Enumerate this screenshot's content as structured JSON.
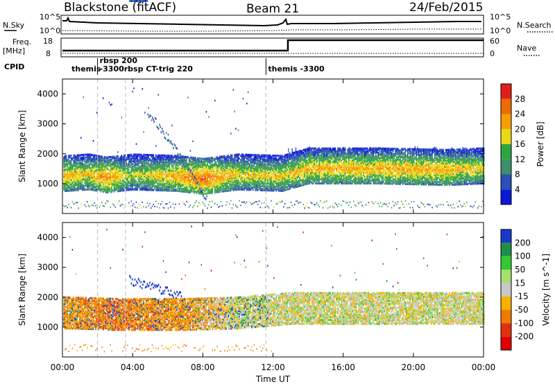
{
  "header": {
    "site": "Blackstone (fitACF)",
    "beam": "Beam 21",
    "date": "24/Feb/2015"
  },
  "strip": {
    "nsky_label": "N.Sky",
    "nsky_ticks": [
      "10^5",
      "10^0"
    ],
    "nsearch_label": "N.Search",
    "nsearch_ticks": [
      "10^5",
      "10^0"
    ],
    "freq_label_1": "Freq.",
    "freq_label_2": "[MHz]",
    "freq_ticks": [
      "18",
      "8"
    ],
    "nave_label": "Nave",
    "nave_ticks": [
      "60",
      "0"
    ],
    "cpid_label": "CPID",
    "cpid_entries": [
      {
        "text": "themis",
        "time": 0.4
      },
      {
        "text": "rbsp 200",
        "time": 2.0
      },
      {
        "text": "-3300rbsp CT-trig 220",
        "time": 2.0
      },
      {
        "text": "themis -3300",
        "time": 11.6
      }
    ]
  },
  "chart_data": [
    {
      "type": "heatmap",
      "title": "",
      "xlabel": "Time UT",
      "ylabel": "Slant Range [km]",
      "xlim": [
        0,
        24
      ],
      "ylim": [
        0,
        4500
      ],
      "x_ticks": [
        "00:00",
        "04:00",
        "08:00",
        "12:00",
        "16:00",
        "20:00",
        "00:00"
      ],
      "y_ticks": [
        1000,
        2000,
        3000,
        4000
      ],
      "colorbar": {
        "label": "Power [dB]",
        "ticks": [
          4,
          8,
          12,
          16,
          20,
          24,
          28
        ],
        "colors": [
          "#0a18d8",
          "#2a4fb8",
          "#3f8f6a",
          "#2ea53f",
          "#e8d818",
          "#f5a000",
          "#ef6a00",
          "#e02018"
        ]
      },
      "main_band": [
        {
          "t": 0.2,
          "range": 1250,
          "power": 22
        },
        {
          "t": 1.5,
          "range": 1300,
          "power": 20
        },
        {
          "t": 2.5,
          "range": 1200,
          "power": 24
        },
        {
          "t": 4.0,
          "range": 1300,
          "power": 18
        },
        {
          "t": 6.5,
          "range": 1250,
          "power": 22
        },
        {
          "t": 8.0,
          "range": 1150,
          "power": 26
        },
        {
          "t": 10.0,
          "range": 1300,
          "power": 20
        },
        {
          "t": 12.5,
          "range": 1250,
          "power": 20
        },
        {
          "t": 14.0,
          "range": 1500,
          "power": 22
        },
        {
          "t": 18.0,
          "range": 1500,
          "power": 22
        },
        {
          "t": 22.0,
          "range": 1450,
          "power": 22
        },
        {
          "t": 23.8,
          "range": 1500,
          "power": 20
        }
      ]
    },
    {
      "type": "heatmap",
      "title": "",
      "xlabel": "Time UT",
      "ylabel": "Slant Range [km]",
      "xlim": [
        0,
        24
      ],
      "ylim": [
        0,
        4500
      ],
      "x_ticks": [
        "00:00",
        "04:00",
        "08:00",
        "12:00",
        "16:00",
        "20:00",
        "00:00"
      ],
      "y_ticks": [
        1000,
        2000,
        3000,
        4000
      ],
      "colorbar": {
        "label": "Velocity [m s^-1]",
        "ticks": [
          "200",
          "100",
          "50",
          "15",
          "-15",
          "-50",
          "-100",
          "-200"
        ],
        "colors": [
          "#1838c8",
          "#1e8f4a",
          "#34c834",
          "#a8e070",
          "#c8c8c8",
          "#f5b000",
          "#ef7a00",
          "#e03010",
          "#e00000"
        ]
      },
      "main_band": [
        {
          "t": 0.5,
          "range": 1350,
          "velocity": -60
        },
        {
          "t": 3.0,
          "range": 1300,
          "velocity": -80
        },
        {
          "t": 7.0,
          "range": 1300,
          "velocity": -60
        },
        {
          "t": 10.0,
          "range": 1350,
          "velocity": 0
        },
        {
          "t": 13.0,
          "range": 1500,
          "velocity": 0
        },
        {
          "t": 20.0,
          "range": 1500,
          "velocity": 0
        },
        {
          "t": 24.0,
          "range": 1500,
          "velocity": 0
        }
      ]
    }
  ]
}
